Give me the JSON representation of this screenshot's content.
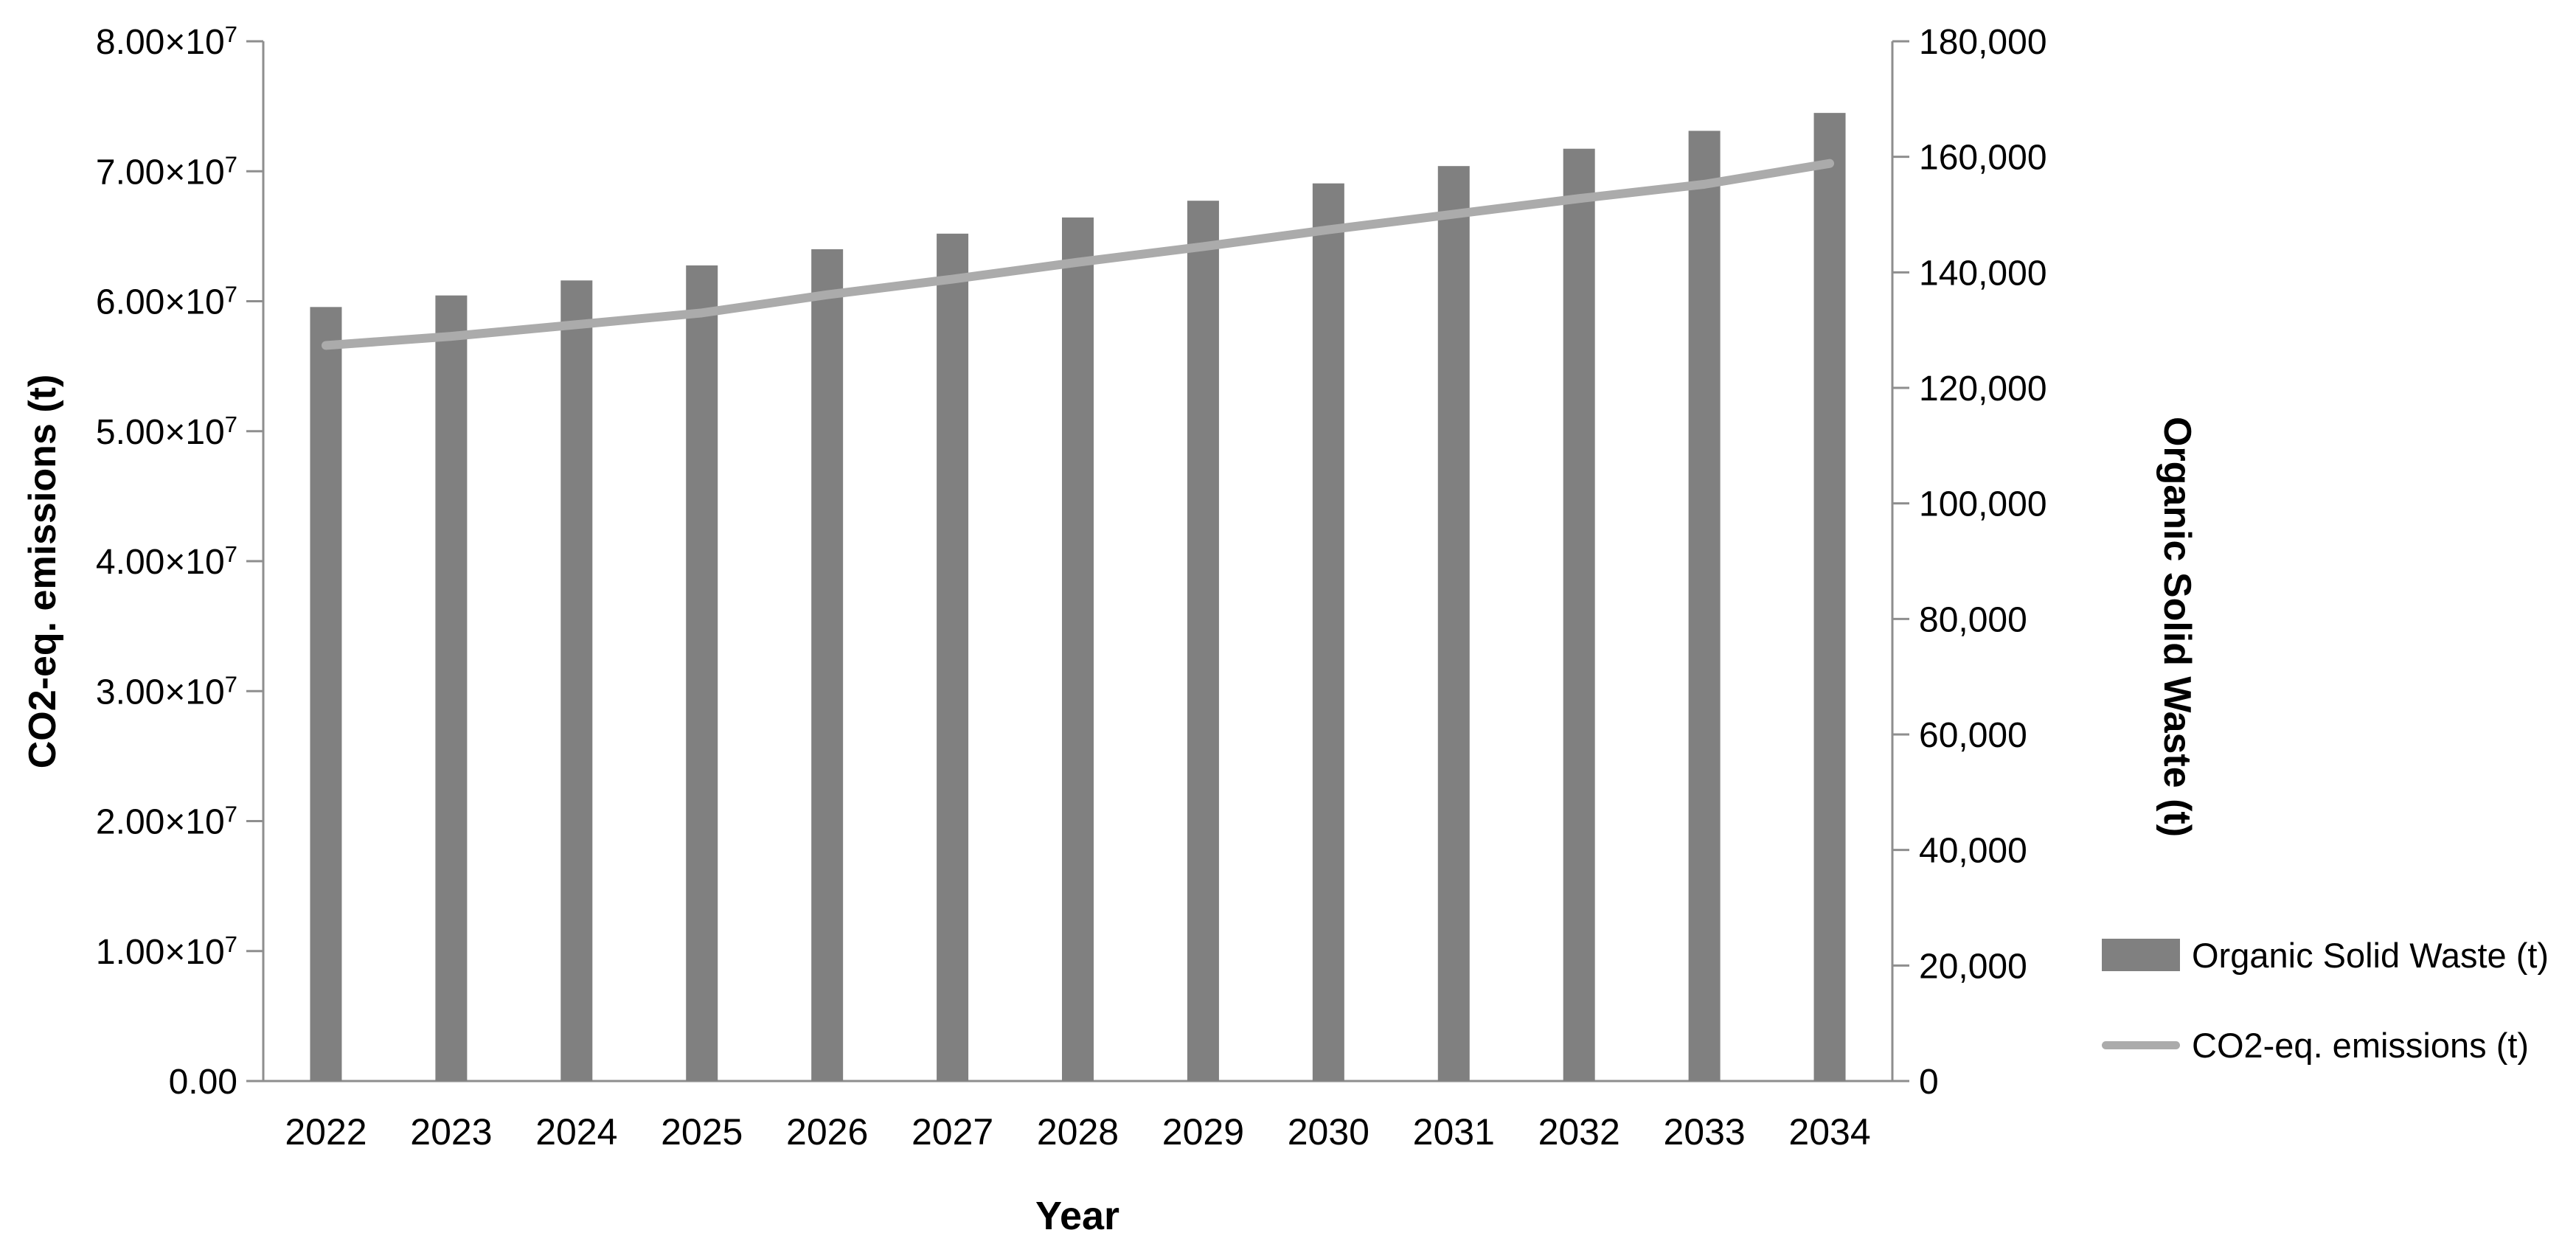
{
  "chart_data": {
    "type": "bar",
    "subtype": "dual-axis combo: bars on secondary (right) axis, line on primary (left) axis",
    "categories": [
      "2022",
      "2023",
      "2024",
      "2025",
      "2026",
      "2027",
      "2028",
      "2029",
      "2030",
      "2031",
      "2032",
      "2033",
      "2034"
    ],
    "series": [
      {
        "name": "Organic Solid Waste (t)",
        "type": "bar",
        "axis": "right",
        "color": "#808080",
        "values": [
          134000,
          136000,
          138600,
          141200,
          144000,
          146700,
          149500,
          152400,
          155400,
          158400,
          161400,
          164500,
          167600
        ]
      },
      {
        "name": "CO2-eq. emissions (t)",
        "type": "line",
        "axis": "left",
        "color": "#ababab",
        "values": [
          56600000,
          57300000,
          58200000,
          59100000,
          60500000,
          61700000,
          63000000,
          64200000,
          65500000,
          66700000,
          67900000,
          69000000,
          70600000
        ]
      }
    ],
    "xlabel": "Year",
    "left_axis": {
      "label": "CO2-eq. emissions (t)",
      "min": 0,
      "max": 80000000,
      "step": 10000000,
      "tick_labels": [
        "0.00",
        "1.00×10^7",
        "2.00×10^7",
        "3.00×10^7",
        "4.00×10^7",
        "5.00×10^7",
        "6.00×10^7",
        "7.00×10^7",
        "8.00×10^7"
      ]
    },
    "right_axis": {
      "label": "Organic Solid Waste (t)",
      "min": 0,
      "max": 180000,
      "step": 20000,
      "tick_labels": [
        "0",
        "20,000",
        "40,000",
        "60,000",
        "80,000",
        "100,000",
        "120,000",
        "140,000",
        "160,000",
        "180,000"
      ]
    },
    "grid": false,
    "legend_position": "right-bottom",
    "axis_color": "#8e8e8e",
    "text_color": "#000000",
    "background_color": "#ffffff"
  }
}
